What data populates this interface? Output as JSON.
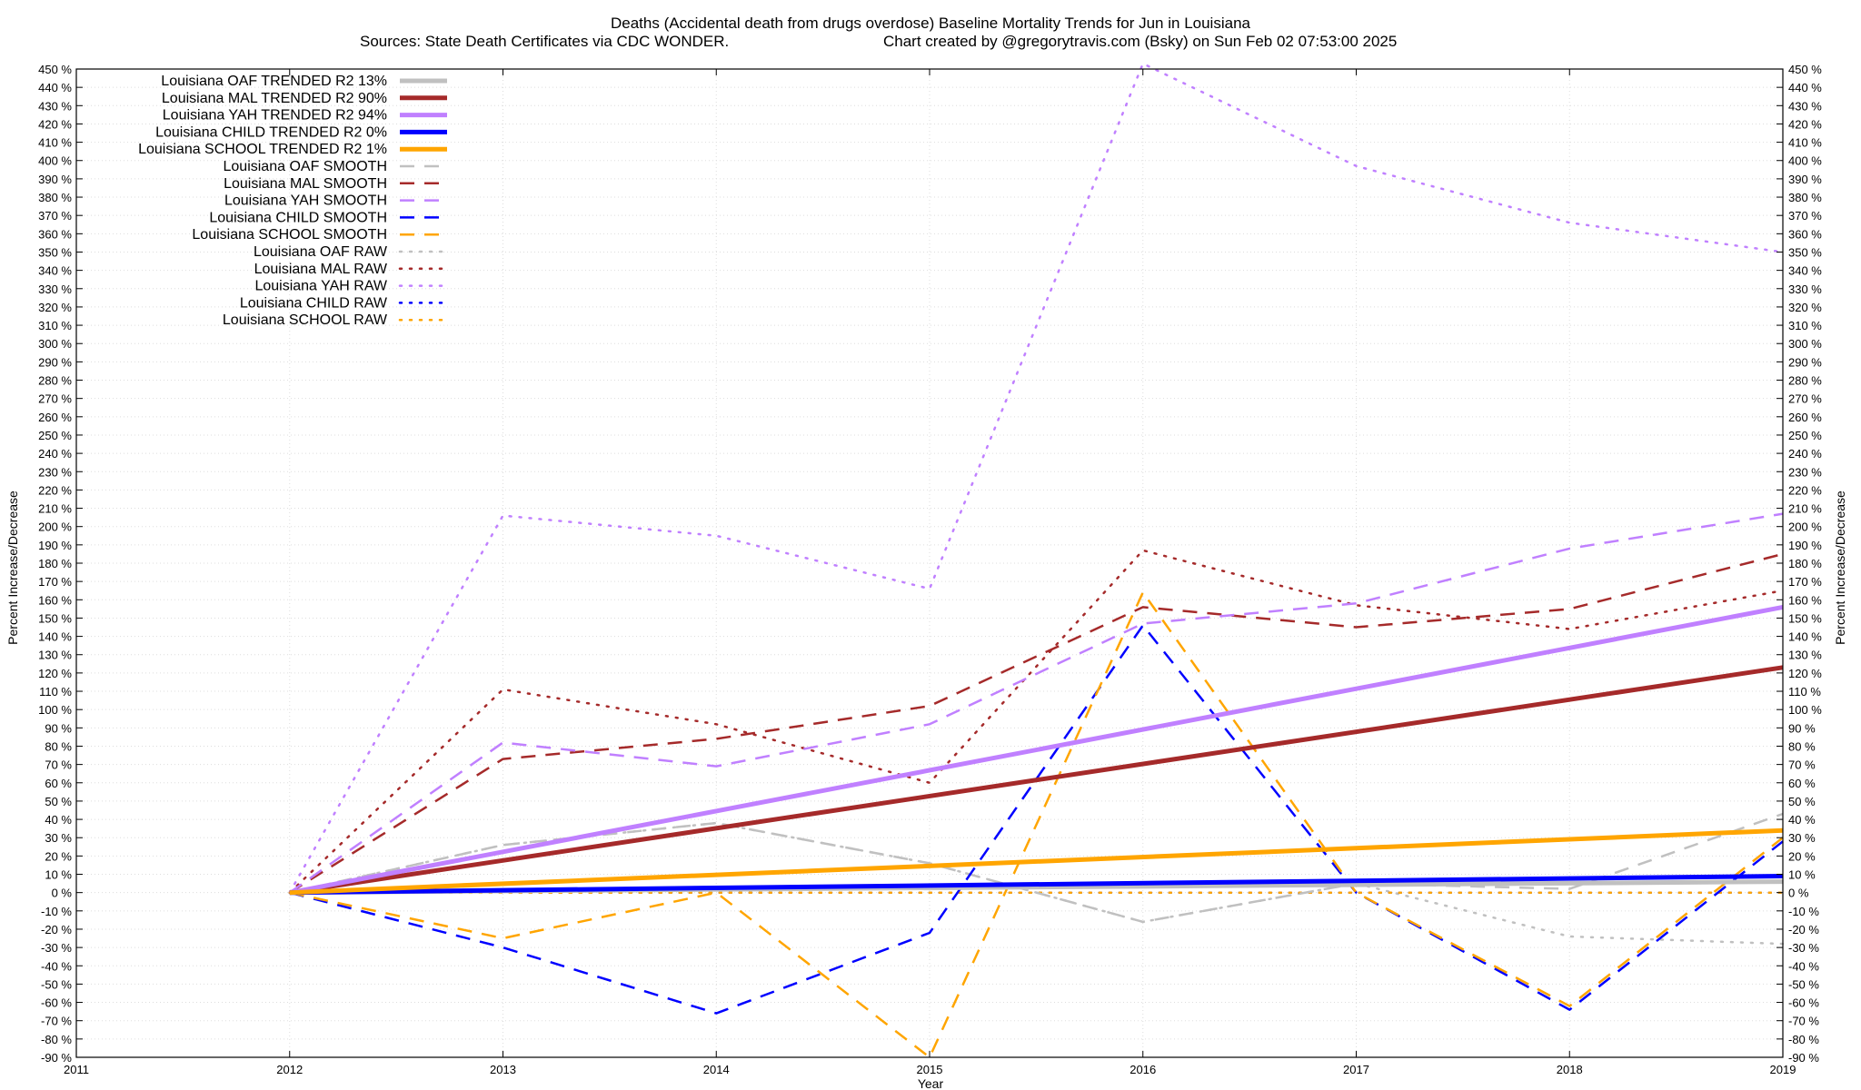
{
  "chart_data": {
    "type": "line",
    "title": "Deaths (Accidental death from drugs overdose)  Baseline Mortality Trends for Jun in Louisiana",
    "subtitle_left": "Sources: State Death Certificates via CDC WONDER.",
    "subtitle_right": "Chart created by @gregorytravis.com (Bsky) on Sun Feb 02 07:53:00 2025",
    "xlabel": "Year",
    "ylabel": "Percent Increase/Decrease",
    "ylabel_right": "Percent Increase/Decrease",
    "xlim": [
      2011,
      2019
    ],
    "ylim": [
      -90,
      450
    ],
    "x_ticks": [
      "2011",
      "2012",
      "2013",
      "2014",
      "2015",
      "2016",
      "2017",
      "2018",
      "2019"
    ],
    "y_tick_step": 10,
    "y_tick_suffix": " %",
    "grid": true,
    "legend_position": "top-left",
    "series": [
      {
        "name": "Louisiana OAF TRENDED R2",
        "r2": "13%",
        "color": "#c0c0c0",
        "style": "solid",
        "x": [
          2012,
          2019
        ],
        "values": [
          0,
          6
        ]
      },
      {
        "name": "Louisiana MAL TRENDED R2",
        "r2": "90%",
        "color": "#a52a2a",
        "style": "solid",
        "x": [
          2012,
          2019
        ],
        "values": [
          0,
          123
        ]
      },
      {
        "name": "Louisiana YAH TRENDED R2",
        "r2": "94%",
        "color": "#c080ff",
        "style": "solid",
        "x": [
          2012,
          2019
        ],
        "values": [
          0,
          156
        ]
      },
      {
        "name": "Louisiana CHILD TRENDED R2",
        "r2": "0%",
        "color": "#0000ff",
        "style": "solid",
        "x": [
          2012,
          2019
        ],
        "values": [
          0,
          9
        ]
      },
      {
        "name": "Louisiana SCHOOL TRENDED R2",
        "r2": "1%",
        "color": "#ffa500",
        "style": "solid",
        "x": [
          2012,
          2019
        ],
        "values": [
          0,
          34
        ]
      },
      {
        "name": "Louisiana OAF SMOOTH",
        "r2": "",
        "color": "#c0c0c0",
        "style": "dashed",
        "x": [
          2012,
          2013,
          2014,
          2015,
          2016,
          2017,
          2018,
          2019
        ],
        "values": [
          0,
          26,
          38,
          16,
          -16,
          5,
          2,
          43
        ]
      },
      {
        "name": "Louisiana MAL SMOOTH",
        "r2": "",
        "color": "#a52a2a",
        "style": "dashed",
        "x": [
          2012,
          2013,
          2014,
          2015,
          2016,
          2017,
          2018,
          2019
        ],
        "values": [
          0,
          73,
          84,
          102,
          156,
          145,
          155,
          185
        ]
      },
      {
        "name": "Louisiana YAH SMOOTH",
        "r2": "",
        "color": "#c080ff",
        "style": "dashed",
        "x": [
          2012,
          2013,
          2014,
          2015,
          2016,
          2017,
          2018,
          2019
        ],
        "values": [
          0,
          82,
          69,
          92,
          147,
          158,
          188,
          207
        ]
      },
      {
        "name": "Louisiana CHILD SMOOTH",
        "r2": "",
        "color": "#0000ff",
        "style": "dashed",
        "x": [
          2012,
          2013,
          2014,
          2015,
          2016,
          2017,
          2018,
          2019
        ],
        "values": [
          0,
          -30,
          -66,
          -22,
          146,
          0,
          -64,
          28
        ]
      },
      {
        "name": "Louisiana SCHOOL SMOOTH",
        "r2": "",
        "color": "#ffa500",
        "style": "dashed",
        "x": [
          2012,
          2013,
          2014,
          2015,
          2016,
          2017,
          2018,
          2019
        ],
        "values": [
          0,
          -25,
          0,
          -90,
          164,
          0,
          -62,
          30
        ]
      },
      {
        "name": "Louisiana OAF RAW",
        "r2": "",
        "color": "#c0c0c0",
        "style": "dotted",
        "x": [
          2012,
          2013,
          2014,
          2015,
          2016,
          2017,
          2018,
          2019
        ],
        "values": [
          0,
          26,
          38,
          16,
          -16,
          5,
          -24,
          -28
        ]
      },
      {
        "name": "Louisiana MAL RAW",
        "r2": "",
        "color": "#a52a2a",
        "style": "dotted",
        "x": [
          2012,
          2013,
          2014,
          2015,
          2016,
          2017,
          2018,
          2019
        ],
        "values": [
          0,
          111,
          92,
          60,
          187,
          157,
          144,
          165
        ]
      },
      {
        "name": "Louisiana YAH RAW",
        "r2": "",
        "color": "#c080ff",
        "style": "dotted",
        "x": [
          2012,
          2013,
          2014,
          2015,
          2016,
          2017,
          2018,
          2019
        ],
        "values": [
          0,
          206,
          195,
          166,
          453,
          397,
          366,
          350
        ]
      },
      {
        "name": "Louisiana CHILD RAW",
        "r2": "",
        "color": "#0000ff",
        "style": "dotted",
        "x": [
          2012,
          2013,
          2014,
          2015,
          2016,
          2017,
          2018,
          2019
        ],
        "values": [
          0,
          0,
          0,
          0,
          0,
          0,
          0,
          0
        ]
      },
      {
        "name": "Louisiana SCHOOL RAW",
        "r2": "",
        "color": "#ffa500",
        "style": "dotted",
        "x": [
          2012,
          2013,
          2014,
          2015,
          2016,
          2017,
          2018,
          2019
        ],
        "values": [
          0,
          0,
          0,
          0,
          0,
          0,
          0,
          0
        ]
      }
    ]
  }
}
